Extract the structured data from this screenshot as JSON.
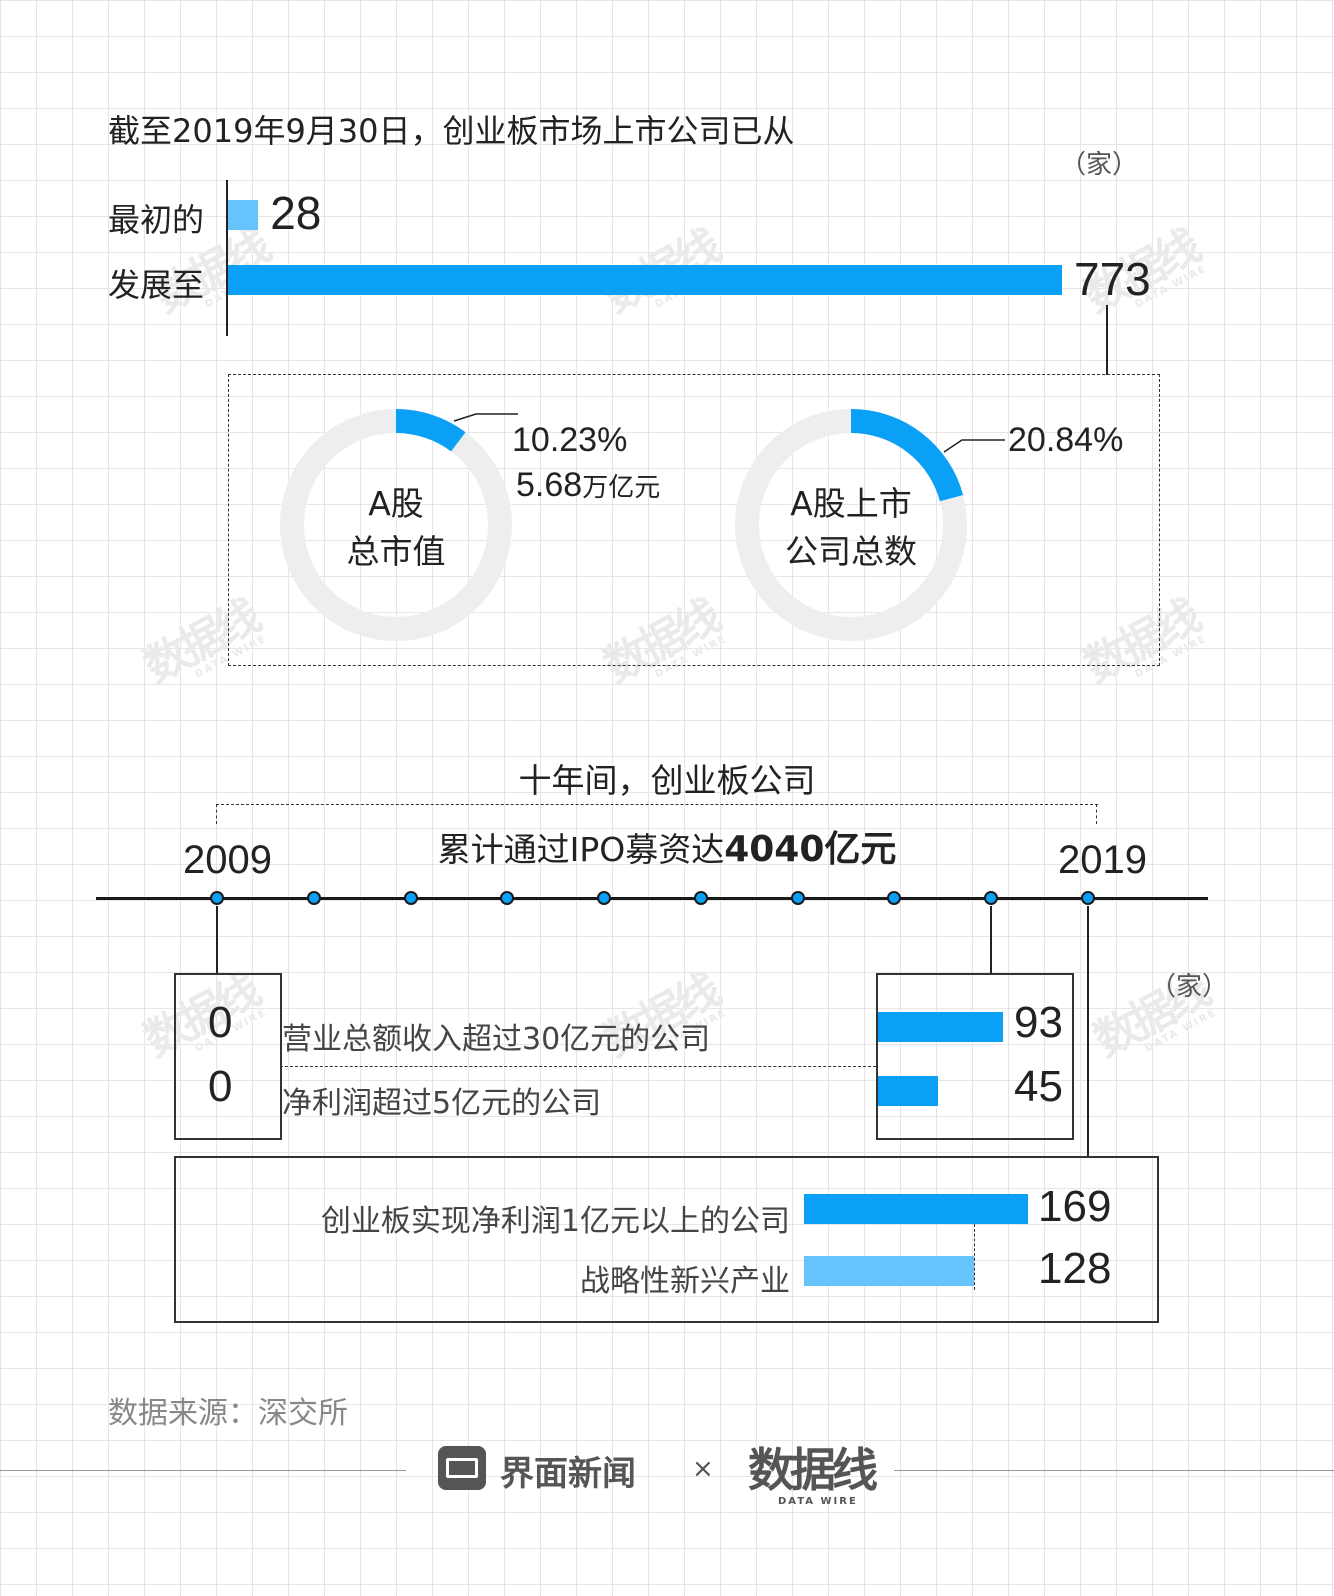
{
  "colors": {
    "bar": "#0aa0f5",
    "bar_light": "#64c4fb",
    "donut_track": "#eeeeee",
    "timeline_dot": "#0aa0f5"
  },
  "header": {
    "title": "截至2019年9月30日，创业板市场上市公司已从",
    "unit": "（家）"
  },
  "growth": {
    "rows": [
      {
        "label": "最初的",
        "value": 28
      },
      {
        "label": "发展至",
        "value": 773
      }
    ]
  },
  "donuts": [
    {
      "center": [
        "A股",
        "总市值"
      ],
      "pct_label": "10.23%",
      "extra_value": "5.68",
      "extra_unit": "万亿元",
      "fraction": 0.1023
    },
    {
      "center": [
        "A股上市",
        "公司总数"
      ],
      "pct_label": "20.84%",
      "fraction": 0.2084
    }
  ],
  "timeline": {
    "title": "十年间，创业板公司",
    "subtitle_prefix": "累计通过IPO募资达",
    "subtitle_bold": "4040亿元",
    "start_year": "2009",
    "end_year": "2019",
    "dot_count": 10
  },
  "compare": {
    "unit": "（家）",
    "rows": [
      {
        "label": "营业总额收入超过30亿元的公司",
        "v2009": "0",
        "v2019": 93
      },
      {
        "label": "净利润超过5亿元的公司",
        "v2009": "0",
        "v2019": 45
      }
    ]
  },
  "bottom": {
    "rows": [
      {
        "label": "创业板实现净利润1亿元以上的公司",
        "value": 169
      },
      {
        "label": "战略性新兴产业",
        "value": 128
      }
    ]
  },
  "chart_data": {
    "type": "bar",
    "title": "截至2019年9月30日，创业板市场上市公司已从",
    "categories": [
      "最初的",
      "发展至"
    ],
    "values": [
      28,
      773
    ],
    "unit": "家"
  },
  "footer": {
    "source": "数据来源：深交所",
    "brand": "界面新闻",
    "times": "×",
    "partner": "数据线",
    "partner_sub": "DATA WIRE"
  }
}
